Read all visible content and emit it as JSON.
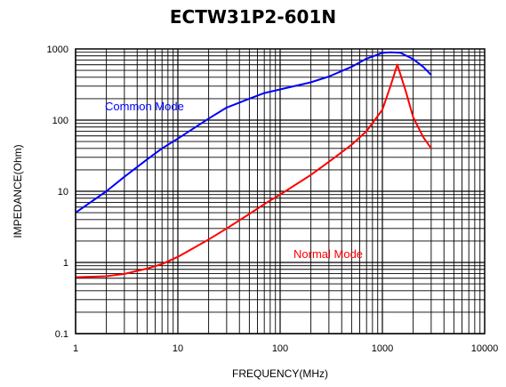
{
  "chart_data": {
    "type": "line",
    "title": "ECTW31P2-601N",
    "xlabel": "FREQUENCY(MHz)",
    "ylabel": "IMPEDANCE(Ohm)",
    "x_scale": "log",
    "y_scale": "log",
    "xlim": [
      1,
      10000
    ],
    "ylim": [
      0.1,
      1000
    ],
    "x_ticks": [
      "1",
      "10",
      "100",
      "1000",
      "10000"
    ],
    "y_ticks": [
      "1000",
      "100",
      "10",
      "1",
      "0.1"
    ],
    "grid": true,
    "legend": "inline-labels",
    "series": [
      {
        "name": "Common Mode",
        "color": "#0000ff",
        "x": [
          1,
          2,
          3,
          5,
          7,
          10,
          20,
          30,
          50,
          70,
          100,
          200,
          300,
          500,
          700,
          1000,
          1200,
          1500,
          2000,
          2500,
          3000
        ],
        "y": [
          5,
          10,
          16,
          28,
          40,
          55,
          105,
          150,
          200,
          240,
          270,
          340,
          410,
          560,
          730,
          880,
          900,
          880,
          720,
          560,
          430
        ]
      },
      {
        "name": "Normal Mode",
        "color": "#ff0000",
        "x": [
          1,
          2,
          3,
          5,
          7,
          10,
          20,
          30,
          50,
          70,
          100,
          200,
          300,
          500,
          700,
          1000,
          1200,
          1400,
          1700,
          2000,
          2500,
          3000
        ],
        "y": [
          0.62,
          0.64,
          0.69,
          0.82,
          0.95,
          1.2,
          2.1,
          3.0,
          4.8,
          6.6,
          9.0,
          17,
          26,
          45,
          70,
          140,
          300,
          600,
          250,
          110,
          58,
          40
        ]
      }
    ]
  }
}
